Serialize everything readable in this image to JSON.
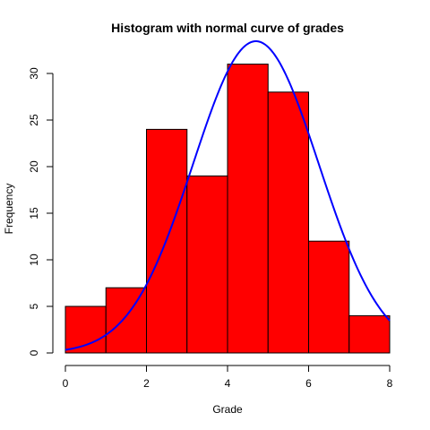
{
  "chart_data": {
    "type": "bar",
    "title": "Histogram with normal curve of grades",
    "xlabel": "Grade",
    "ylabel": "Frequency",
    "bins": [
      {
        "from": 0,
        "to": 1,
        "count": 5
      },
      {
        "from": 1,
        "to": 2,
        "count": 7
      },
      {
        "from": 2,
        "to": 3,
        "count": 24
      },
      {
        "from": 3,
        "to": 4,
        "count": 19
      },
      {
        "from": 4,
        "to": 5,
        "count": 31
      },
      {
        "from": 5,
        "to": 6,
        "count": 28
      },
      {
        "from": 6,
        "to": 7,
        "count": 12
      },
      {
        "from": 7,
        "to": 8,
        "count": 4
      }
    ],
    "normal_curve": {
      "mean": 4.7,
      "sd": 1.55,
      "n": 130
    },
    "xlim": [
      0,
      8
    ],
    "ylim": [
      0,
      30
    ],
    "x_ticks": [
      "0",
      "2",
      "4",
      "6",
      "8"
    ],
    "y_ticks": [
      "0",
      "5",
      "10",
      "15",
      "20",
      "25",
      "30"
    ],
    "grid": false,
    "legend": "none",
    "bar_color": "#ff0000",
    "curve_color": "#0000ff"
  }
}
